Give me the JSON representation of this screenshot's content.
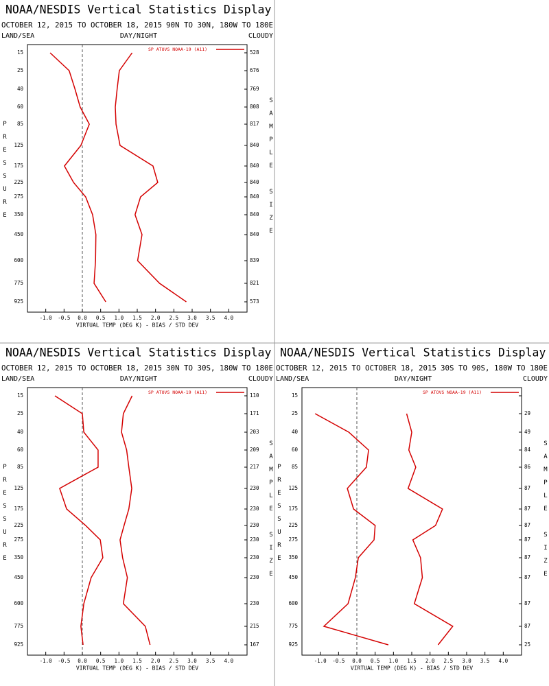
{
  "chart_data": [
    {
      "type": "line",
      "orientation": "horizontal",
      "title": "NOAA/NESDIS Vertical Statistics Display",
      "subtitle": "OCTOBER 12, 2015 TO OCTOBER 18, 2015",
      "region": "90N TO 30N, 180W TO 180E",
      "left_label": "LAND/SEA",
      "center_label": "DAY/NIGHT",
      "right_label": "CLOUDY",
      "y_label": "PRESSURE",
      "y2_label": "SAMPLE SIZE",
      "x_label": "VIRTUAL TEMP (DEG K) - BIAS / STD DEV",
      "categories": [
        15,
        25,
        40,
        60,
        85,
        125,
        175,
        225,
        275,
        350,
        450,
        600,
        775,
        925
      ],
      "sample_size": [
        528,
        676,
        769,
        808,
        817,
        840,
        840,
        840,
        840,
        840,
        840,
        839,
        821,
        573
      ],
      "series": [
        {
          "name": "SP ATOVS NOAA-19 (A11)",
          "color": "#d40000",
          "values": [
            -0.88,
            -0.36,
            -0.2,
            -0.06,
            0.19,
            -0.04,
            -0.49,
            -0.24,
            0.09,
            0.28,
            0.37,
            0.36,
            0.32,
            0.64
          ],
          "std_dev": [
            1.36,
            1.01,
            0.95,
            0.9,
            0.92,
            1.03,
            1.93,
            2.06,
            1.59,
            1.44,
            1.63,
            1.51,
            2.11,
            2.84
          ]
        }
      ],
      "xlim": [
        -1.5,
        4.5
      ],
      "xticks": [
        {
          "value": -1,
          "label": "-1.0"
        },
        -0.5,
        {
          "value": 0,
          "label": "0.0"
        },
        0.5,
        {
          "value": 1,
          "label": "1.0"
        },
        1.5,
        {
          "value": 2,
          "label": "2.0"
        },
        2.5,
        {
          "value": 3,
          "label": "3.0"
        },
        3.5,
        {
          "value": 4,
          "label": "4.0"
        }
      ]
    },
    {
      "type": "line",
      "orientation": "horizontal",
      "title": "NOAA/NESDIS Vertical Statistics Display",
      "subtitle": "OCTOBER 12, 2015 TO OCTOBER 18, 2015",
      "region": "30N TO 30S, 180W TO 180E",
      "left_label": "LAND/SEA",
      "center_label": "DAY/NIGHT",
      "right_label": "CLOUDY",
      "y_label": "PRESSURE",
      "y2_label": "SAMPLE SIZE",
      "x_label": "VIRTUAL TEMP (DEG K) - BIAS / STD DEV",
      "categories": [
        15,
        25,
        40,
        60,
        85,
        125,
        175,
        225,
        275,
        350,
        450,
        600,
        775,
        925
      ],
      "sample_size": [
        110,
        171,
        203,
        209,
        217,
        230,
        230,
        230,
        230,
        230,
        230,
        230,
        215,
        167
      ],
      "series": [
        {
          "name": "SP ATOVS NOAA-19 (A11)",
          "color": "#d40000",
          "values": [
            -0.75,
            0.0,
            0.04,
            0.43,
            0.43,
            -0.62,
            -0.43,
            0.09,
            0.49,
            0.56,
            0.24,
            0.04,
            -0.04,
            0.02
          ],
          "std_dev": [
            1.36,
            1.12,
            1.07,
            1.21,
            1.27,
            1.35,
            1.27,
            1.14,
            1.03,
            1.1,
            1.23,
            1.12,
            1.72,
            1.85
          ]
        }
      ],
      "xlim": [
        -1.5,
        4.5
      ],
      "xticks": [
        {
          "value": -1,
          "label": "-1.0"
        },
        -0.5,
        {
          "value": 0,
          "label": "0.0"
        },
        0.5,
        {
          "value": 1,
          "label": "1.0"
        },
        1.5,
        {
          "value": 2,
          "label": "2.0"
        },
        2.5,
        {
          "value": 3,
          "label": "3.0"
        },
        3.5,
        {
          "value": 4,
          "label": "4.0"
        }
      ]
    },
    {
      "type": "line",
      "orientation": "horizontal",
      "title": "NOAA/NESDIS Vertical Statistics Display",
      "subtitle": "OCTOBER 12, 2015 TO OCTOBER 18, 2015",
      "region": "30S TO 90S, 180W TO 180E",
      "left_label": "LAND/SEA",
      "center_label": "DAY/NIGHT",
      "right_label": "CLOUDY",
      "y_label": "PRESSURE",
      "y2_label": "SAMPLE SIZE",
      "x_label": "VIRTUAL TEMP (DEG K) - BIAS / STD DEV",
      "categories": [
        15,
        25,
        40,
        60,
        85,
        125,
        175,
        225,
        275,
        350,
        450,
        600,
        775,
        925
      ],
      "sample_size": [
        null,
        29,
        49,
        84,
        86,
        87,
        87,
        87,
        87,
        87,
        87,
        87,
        87,
        25
      ],
      "series": [
        {
          "name": "SP ATOVS NOAA-19 (A11)",
          "color": "#d40000",
          "values": [
            null,
            -1.14,
            -0.22,
            0.32,
            0.26,
            -0.26,
            -0.09,
            0.5,
            0.47,
            0.04,
            -0.04,
            -0.24,
            -0.9,
            0.86
          ],
          "std_dev": [
            null,
            1.36,
            1.5,
            1.42,
            1.61,
            1.4,
            2.34,
            2.15,
            1.53,
            1.74,
            1.79,
            1.57,
            2.62,
            2.22
          ]
        }
      ],
      "xlim": [
        -1.5,
        4.5
      ],
      "xticks": [
        {
          "value": -1,
          "label": "-1.0"
        },
        -0.5,
        {
          "value": 0,
          "label": "0.0"
        },
        0.5,
        {
          "value": 1,
          "label": "1.0"
        },
        1.5,
        {
          "value": 2,
          "label": "2.0"
        },
        2.5,
        {
          "value": 3,
          "label": "3.0"
        },
        3.5,
        {
          "value": 4,
          "label": "4.0"
        }
      ]
    }
  ]
}
